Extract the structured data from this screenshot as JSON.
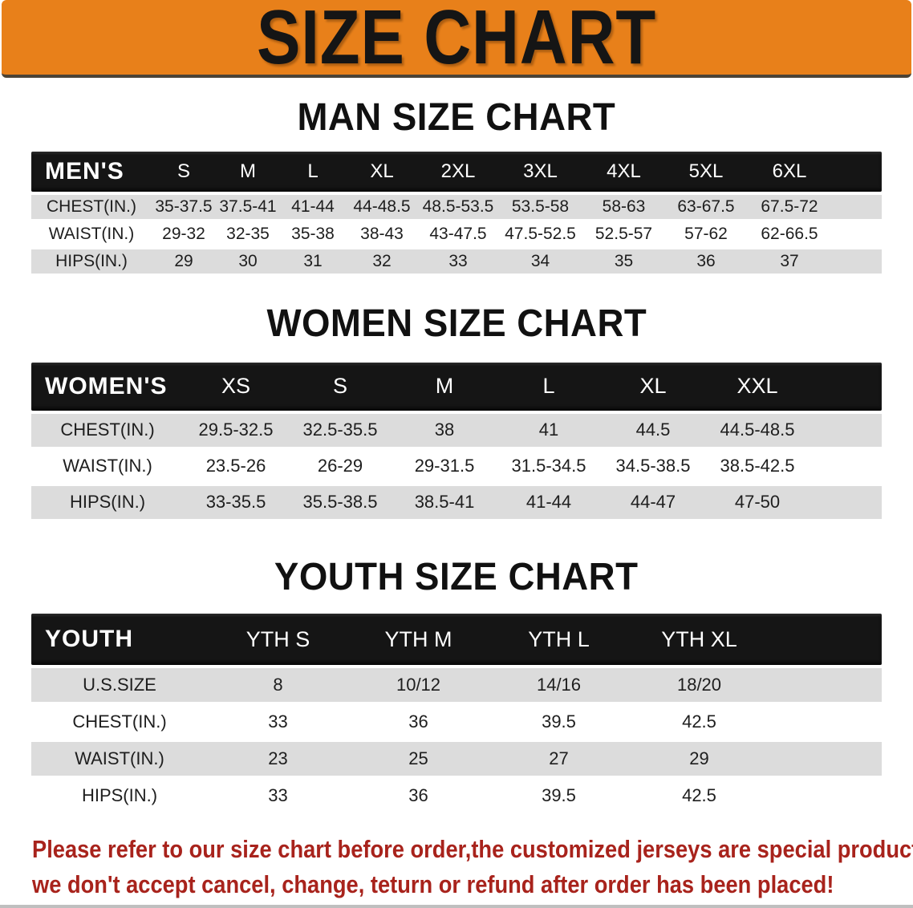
{
  "banner": {
    "title": "SIZE CHART"
  },
  "colors": {
    "banner_bg": "#E8801A",
    "banner_text": "#151515",
    "header_bar_bg": "#151515",
    "header_bar_text": "#FFFFFF",
    "row_stripe": "#DCDCDC",
    "row_alt": "#FFFFFF",
    "cell_text": "#1E1E1E",
    "disclaimer_text": "#A8231C"
  },
  "sections": [
    {
      "id": "men",
      "heading": "MAN SIZE CHART",
      "table": {
        "corner": "MEN'S",
        "columns": [
          "S",
          "M",
          "L",
          "XL",
          "2XL",
          "3XL",
          "4XL",
          "5XL",
          "6XL"
        ],
        "rows": [
          {
            "label": "CHEST(IN.)",
            "values": [
              "35-37.5",
              "37.5-41",
              "41-44",
              "44-48.5",
              "48.5-53.5",
              "53.5-58",
              "58-63",
              "63-67.5",
              "67.5-72"
            ]
          },
          {
            "label": "WAIST(IN.)",
            "values": [
              "29-32",
              "32-35",
              "35-38",
              "38-43",
              "43-47.5",
              "47.5-52.5",
              "52.5-57",
              "57-62",
              "62-66.5"
            ]
          },
          {
            "label": "HIPS(IN.)",
            "values": [
              "29",
              "30",
              "31",
              "32",
              "33",
              "34",
              "35",
              "36",
              "37"
            ]
          }
        ]
      }
    },
    {
      "id": "women",
      "heading": "WOMEN SIZE CHART",
      "table": {
        "corner": "WOMEN'S",
        "columns": [
          "XS",
          "S",
          "M",
          "L",
          "XL",
          "XXL"
        ],
        "rows": [
          {
            "label": "CHEST(IN.)",
            "values": [
              "29.5-32.5",
              "32.5-35.5",
              "38",
              "41",
              "44.5",
              "44.5-48.5"
            ]
          },
          {
            "label": "WAIST(IN.)",
            "values": [
              "23.5-26",
              "26-29",
              "29-31.5",
              "31.5-34.5",
              "34.5-38.5",
              "38.5-42.5"
            ]
          },
          {
            "label": "HIPS(IN.)",
            "values": [
              "33-35.5",
              "35.5-38.5",
              "38.5-41",
              "41-44",
              "44-47",
              "47-50"
            ]
          }
        ]
      }
    },
    {
      "id": "youth",
      "heading": "YOUTH SIZE CHART",
      "table": {
        "corner": "YOUTH",
        "columns": [
          "YTH S",
          "YTH M",
          "YTH L",
          "YTH XL"
        ],
        "rows": [
          {
            "label": "U.S.SIZE",
            "values": [
              "8",
              "10/12",
              "14/16",
              "18/20"
            ]
          },
          {
            "label": "CHEST(IN.)",
            "values": [
              "33",
              "36",
              "39.5",
              "42.5"
            ]
          },
          {
            "label": "WAIST(IN.)",
            "values": [
              "23",
              "25",
              "27",
              "29"
            ]
          },
          {
            "label": "HIPS(IN.)",
            "values": [
              "33",
              "36",
              "39.5",
              "42.5"
            ]
          }
        ]
      }
    }
  ],
  "disclaimer": {
    "line1": "Please refer to our size chart before order,the customized jerseys are special products,",
    "line2": "we don't accept cancel, change, teturn or refund after order has been placed!"
  }
}
